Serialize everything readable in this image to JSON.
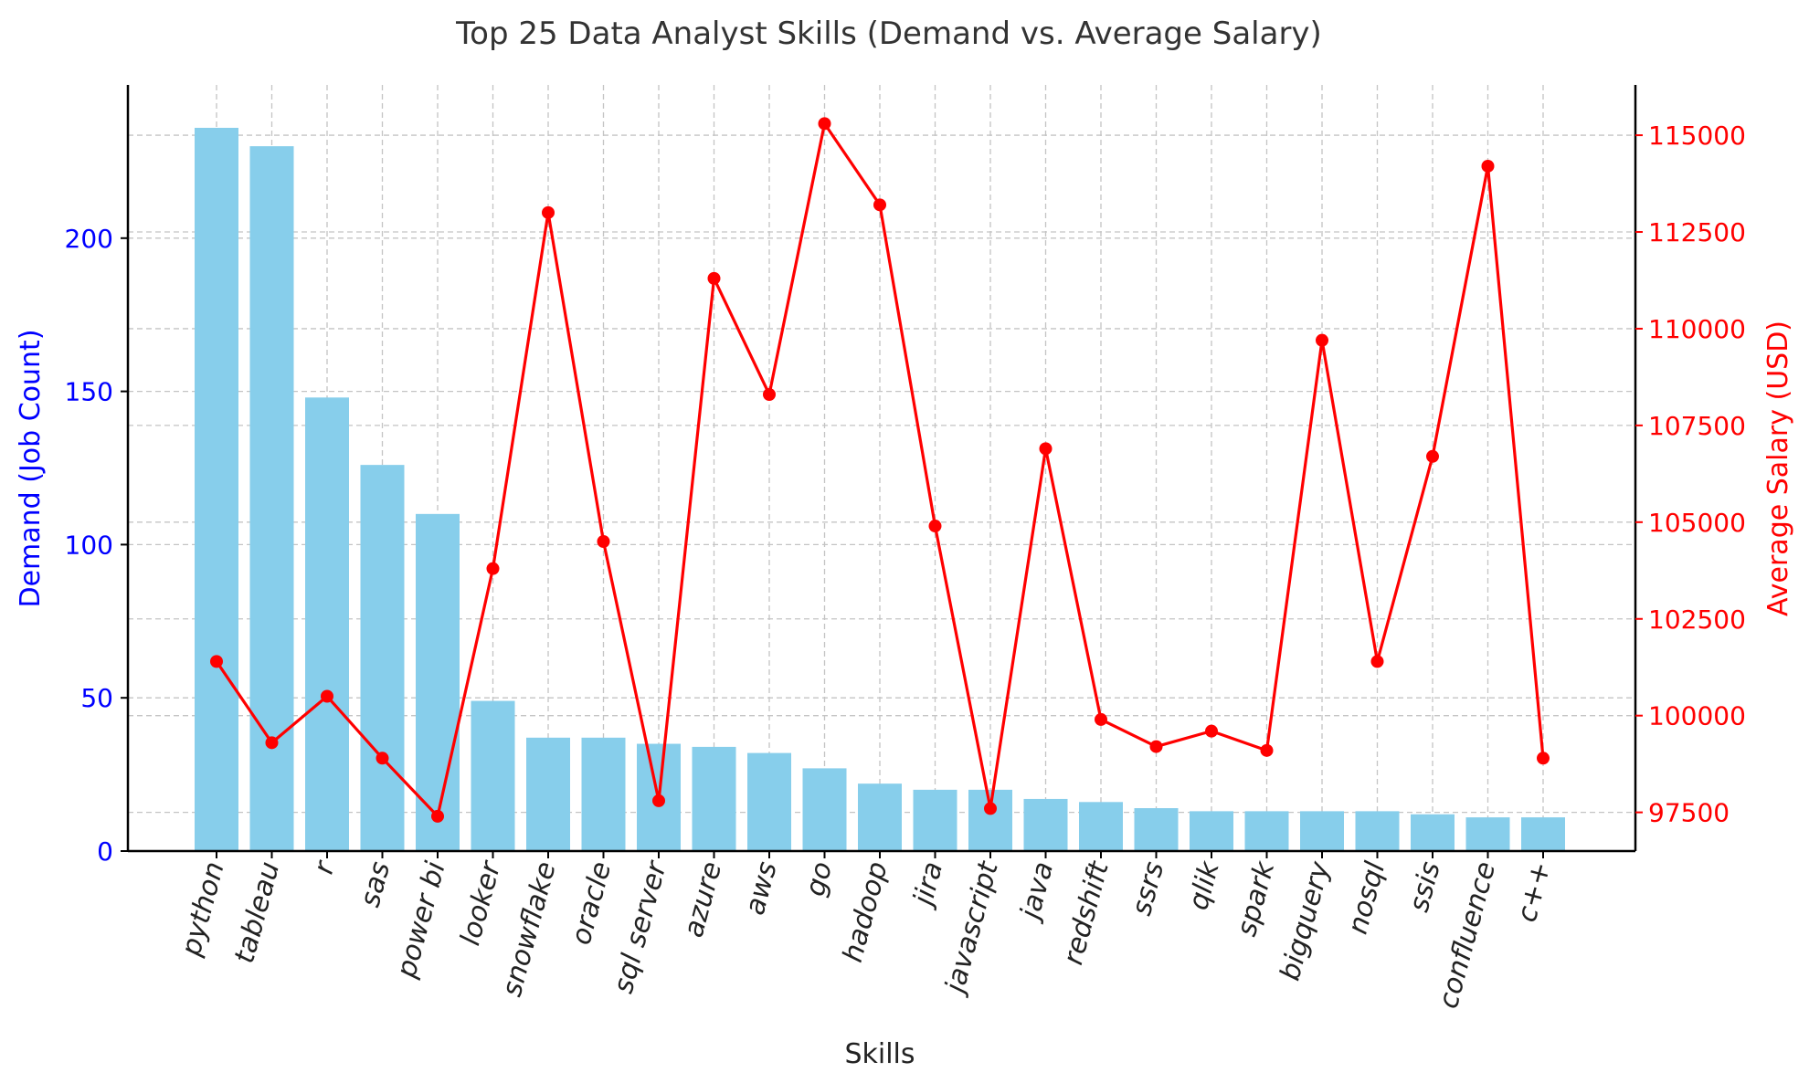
{
  "chart_data": {
    "type": "bar",
    "title": "Top 25 Data Analyst Skills (Demand vs. Average Salary)",
    "xlabel": "Skills",
    "ylabel_left": "Demand (Job Count)",
    "ylabel_right": "Average Salary (USD)",
    "categories": [
      "python",
      "tableau",
      "r",
      "sas",
      "power bi",
      "looker",
      "snowflake",
      "oracle",
      "sql server",
      "azure",
      "aws",
      "go",
      "hadoop",
      "jira",
      "javascript",
      "java",
      "redshift",
      "ssrs",
      "qlik",
      "spark",
      "bigquery",
      "nosql",
      "ssis",
      "confluence",
      "c++"
    ],
    "series": [
      {
        "name": "",
        "type": "bar",
        "axis": "left",
        "color": "#87ceeb",
        "values": [
          236,
          230,
          148,
          126,
          110,
          49,
          37,
          37,
          35,
          34,
          32,
          27,
          22,
          20,
          20,
          17,
          16,
          14,
          13,
          13,
          13,
          13,
          12,
          11,
          11
        ]
      },
      {
        "name": "",
        "type": "line",
        "axis": "right",
        "color": "#ff0000",
        "values": [
          101400,
          99300,
          100500,
          98900,
          97400,
          103800,
          113000,
          104500,
          97800,
          111300,
          108300,
          115300,
          113200,
          104900,
          97600,
          106900,
          99900,
          99200,
          99600,
          99100,
          109700,
          101400,
          106700,
          114200,
          98900
        ]
      }
    ],
    "ylim_left": [
      0,
      250
    ],
    "yticks_left": [
      "0",
      "50",
      "100",
      "150",
      "200"
    ],
    "ylim_right": [
      96500,
      116300
    ],
    "yticks_right": [
      "97500",
      "100000",
      "102500",
      "105000",
      "107500",
      "110000",
      "112500",
      "115000"
    ],
    "grid": true,
    "legend": "none",
    "colors": {
      "left_axis": "#0000ff",
      "right_axis": "#ff0000"
    }
  }
}
